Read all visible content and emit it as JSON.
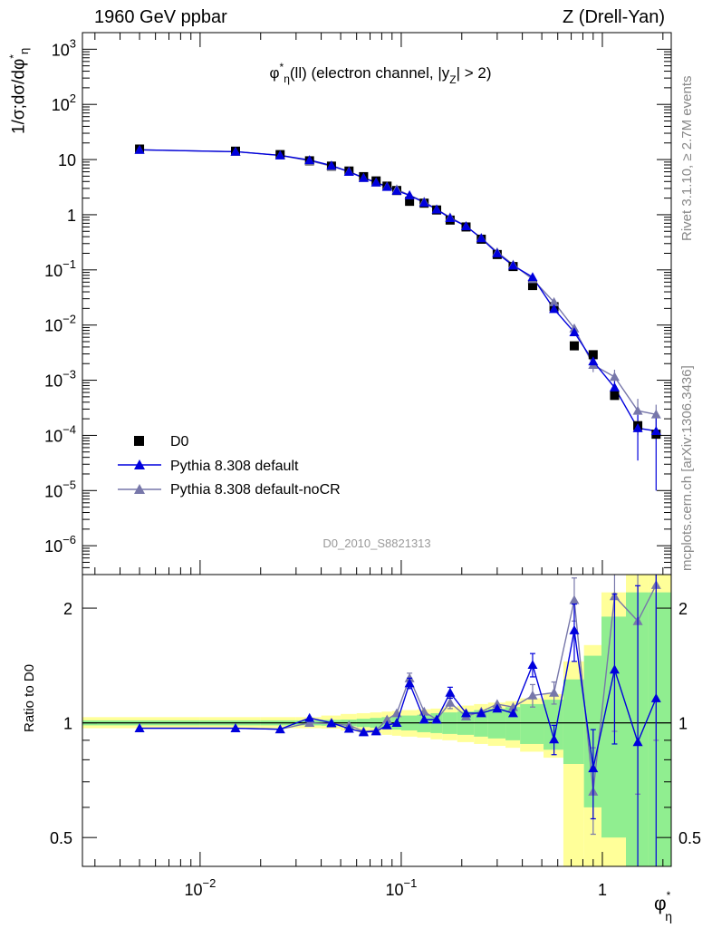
{
  "header": {
    "left": "1960 GeV ppbar",
    "right": "Z (Drell-Yan)"
  },
  "side": {
    "rivet": "Rivet 3.1.10, ≥ 2.7M events",
    "mcplots": "mcplots.cern.ch [arXiv:1306.3436]"
  },
  "chart_data": [
    {
      "type": "scatter",
      "title": "φ*η(ll) (electron channel, |yZ| > 2)",
      "title_parts": {
        "phi": "φ",
        "sup": "*",
        "sub": "η",
        "text": "(ll) (electron channel, |y",
        "zsub": "Z",
        "end": "| > 2)"
      },
      "watermark": "D0_2010_S8821313",
      "ylabel": "1/σ;dσ/dφ*η",
      "ylabel_parts": {
        "main": "1/σ;dσ/dφ",
        "sup": "*",
        "sub": "η"
      },
      "xlabel_parts": {
        "main": "φ",
        "sup": "*",
        "sub": "η"
      },
      "xscale": "log",
      "yscale": "log",
      "xlim": [
        0.0026,
        2.2
      ],
      "ylim": [
        3e-07,
        2000
      ],
      "x_ticks": [
        {
          "v": 0.01,
          "base": "10",
          "exp": "−2"
        },
        {
          "v": 0.1,
          "base": "10",
          "exp": "−1"
        },
        {
          "v": 1,
          "base": "1",
          "exp": ""
        }
      ],
      "y_ticks": [
        {
          "v": 1000,
          "base": "10",
          "exp": "3"
        },
        {
          "v": 100,
          "base": "10",
          "exp": "2"
        },
        {
          "v": 10,
          "base": "10",
          "exp": ""
        },
        {
          "v": 1,
          "base": "1",
          "exp": ""
        },
        {
          "v": 0.1,
          "base": "10",
          "exp": "−1"
        },
        {
          "v": 0.01,
          "base": "10",
          "exp": "−2"
        },
        {
          "v": 0.001,
          "base": "10",
          "exp": "−3"
        },
        {
          "v": 0.0001,
          "base": "10",
          "exp": "−4"
        },
        {
          "v": 1e-05,
          "base": "10",
          "exp": "−5"
        },
        {
          "v": 1e-06,
          "base": "10",
          "exp": "−6"
        }
      ],
      "legend": "lower-left",
      "x": [
        0.005,
        0.015,
        0.025,
        0.035,
        0.045,
        0.055,
        0.065,
        0.075,
        0.085,
        0.095,
        0.11,
        0.13,
        0.15,
        0.175,
        0.21,
        0.25,
        0.3,
        0.36,
        0.45,
        0.575,
        0.725,
        0.9,
        1.15,
        1.5,
        1.85
      ],
      "series": [
        {
          "name": "D0",
          "color": "#000000",
          "marker": "square",
          "values": [
            15.5,
            14.2,
            12.3,
            9.5,
            7.6,
            6.2,
            4.9,
            4.1,
            3.3,
            2.75,
            1.75,
            1.62,
            1.22,
            0.8,
            0.6,
            0.36,
            0.19,
            0.115,
            0.052,
            0.0215,
            0.0042,
            0.0029,
            0.00053,
            0.00015,
            0.000105
          ]
        },
        {
          "name": "Pythia 8.308 default",
          "color": "#0000dd",
          "marker": "triangle",
          "values": [
            15.0,
            13.9,
            11.9,
            9.8,
            7.8,
            6.0,
            4.65,
            3.85,
            3.2,
            2.72,
            2.25,
            1.66,
            1.25,
            0.87,
            0.62,
            0.375,
            0.2,
            0.12,
            0.074,
            0.0195,
            0.0074,
            0.0022,
            0.00074,
            0.000135,
            0.00012
          ],
          "errors": [
            0,
            0,
            0,
            0,
            0,
            0,
            0,
            0,
            0,
            0,
            0,
            0,
            0,
            0,
            0,
            0,
            0,
            0,
            0.004,
            0.002,
            0.0008,
            0.0004,
            0.00022,
            0.0001,
            0.00011
          ]
        },
        {
          "name": "Pythia 8.308 default-noCR",
          "color": "#7777aa",
          "marker": "triangle",
          "values": [
            15.0,
            13.9,
            11.9,
            9.5,
            7.6,
            6.1,
            4.65,
            3.85,
            3.25,
            2.9,
            2.25,
            1.73,
            1.25,
            0.9,
            0.62,
            0.38,
            0.21,
            0.125,
            0.068,
            0.026,
            0.0087,
            0.0019,
            0.00115,
            0.00028,
            0.00024
          ],
          "errors": [
            0,
            0,
            0,
            0,
            0,
            0,
            0,
            0,
            0,
            0,
            0,
            0,
            0,
            0,
            0,
            0,
            0,
            0,
            0.004,
            0.002,
            0.0012,
            0.0005,
            0.0004,
            0.00018,
            0.00012
          ]
        }
      ]
    },
    {
      "type": "scatter",
      "ylabel": "Ratio to D0",
      "yscale": "log",
      "ylim": [
        0.42,
        2.45
      ],
      "y_ticks": [
        {
          "v": 0.5,
          "label": "0.5"
        },
        {
          "v": 1,
          "label": "1"
        },
        {
          "v": 2,
          "label": "2"
        }
      ],
      "reference": 1,
      "x": [
        0.005,
        0.015,
        0.025,
        0.035,
        0.045,
        0.055,
        0.065,
        0.075,
        0.085,
        0.095,
        0.11,
        0.13,
        0.15,
        0.175,
        0.21,
        0.25,
        0.3,
        0.36,
        0.45,
        0.575,
        0.725,
        0.9,
        1.15,
        1.5,
        1.85
      ],
      "bin_edges": [
        0.0026,
        0.01,
        0.02,
        0.03,
        0.04,
        0.05,
        0.06,
        0.07,
        0.08,
        0.09,
        0.1,
        0.12,
        0.14,
        0.16,
        0.19,
        0.23,
        0.27,
        0.33,
        0.39,
        0.51,
        0.64,
        0.81,
        0.99,
        1.31,
        1.69,
        2.2
      ],
      "bands": [
        {
          "name": "stat+syst",
          "color": "#ffff99",
          "low": [
            0.968,
            0.968,
            0.968,
            0.968,
            0.966,
            0.955,
            0.945,
            0.94,
            0.93,
            0.925,
            0.92,
            0.915,
            0.905,
            0.9,
            0.89,
            0.88,
            0.87,
            0.86,
            0.84,
            0.81,
            0.4,
            0.4,
            0.4,
            0.4,
            0.4
          ],
          "high": [
            1.035,
            1.035,
            1.035,
            1.035,
            1.045,
            1.055,
            1.06,
            1.065,
            1.07,
            1.075,
            1.08,
            1.085,
            1.09,
            1.1,
            1.11,
            1.12,
            1.13,
            1.14,
            1.16,
            1.19,
            1.45,
            1.6,
            2.2,
            2.45,
            2.45
          ]
        },
        {
          "name": "stat",
          "color": "#90ee90",
          "low": [
            0.985,
            0.985,
            0.985,
            0.985,
            0.983,
            0.98,
            0.975,
            0.97,
            0.965,
            0.96,
            0.955,
            0.945,
            0.94,
            0.935,
            0.93,
            0.92,
            0.91,
            0.9,
            0.88,
            0.85,
            0.78,
            0.6,
            0.5,
            0.42,
            0.42
          ],
          "high": [
            1.015,
            1.015,
            1.015,
            1.015,
            1.018,
            1.02,
            1.025,
            1.03,
            1.035,
            1.04,
            1.045,
            1.05,
            1.06,
            1.065,
            1.07,
            1.08,
            1.09,
            1.1,
            1.12,
            1.15,
            1.3,
            1.5,
            1.9,
            2.2,
            2.2
          ]
        }
      ],
      "series": [
        {
          "name": "Pythia 8.308 default",
          "color": "#0000dd",
          "values": [
            0.968,
            0.968,
            0.962,
            1.03,
            1.0,
            0.965,
            0.945,
            0.95,
            0.985,
            1.0,
            1.27,
            1.02,
            1.02,
            1.2,
            1.06,
            1.06,
            1.09,
            1.06,
            1.42,
            0.905,
            1.75,
            0.76,
            1.38,
            0.89,
            1.16
          ],
          "err_low": [
            0,
            0,
            0,
            0,
            0,
            0,
            0,
            0,
            0,
            0,
            0.04,
            0,
            0,
            0.04,
            0,
            0,
            0,
            0,
            0.1,
            0.08,
            0.3,
            0.2,
            0.5,
            0.5,
            0.8
          ],
          "err_high": [
            0,
            0,
            0,
            0,
            0,
            0,
            0,
            0,
            0,
            0,
            0.04,
            0,
            0,
            0.04,
            0,
            0,
            0,
            0,
            0.1,
            0.08,
            0.3,
            0.2,
            0.8,
            1.4,
            1.5
          ]
        },
        {
          "name": "Pythia 8.308 default-noCR",
          "color": "#7777aa",
          "values": [
            0.968,
            0.968,
            0.962,
            1.0,
            0.995,
            0.985,
            0.95,
            0.955,
            1.02,
            1.06,
            1.31,
            1.07,
            1.02,
            1.13,
            1.04,
            1.07,
            1.12,
            1.1,
            1.18,
            1.2,
            2.1,
            0.66,
            2.15,
            1.85,
            2.3
          ],
          "err_low": [
            0,
            0,
            0,
            0,
            0,
            0,
            0,
            0,
            0,
            0,
            0.04,
            0,
            0,
            0.04,
            0,
            0,
            0,
            0,
            0.08,
            0.08,
            0.25,
            0.15,
            1.2,
            1.2,
            1.4
          ],
          "err_high": [
            0,
            0,
            0,
            0,
            0,
            0,
            0,
            0,
            0,
            0,
            0.04,
            0,
            0,
            0.04,
            0,
            0,
            0,
            0,
            0.08,
            0.08,
            0.3,
            0.2,
            1.0,
            1.0,
            1.0
          ]
        }
      ]
    }
  ]
}
